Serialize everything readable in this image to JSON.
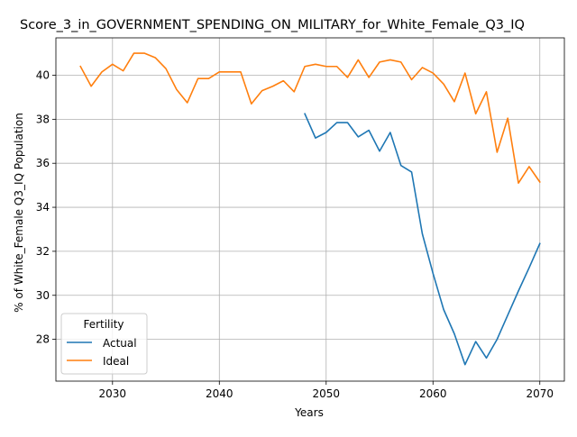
{
  "chart_data": {
    "type": "line",
    "title": "Score_3_in_GOVERNMENT_SPENDING_ON_MILITARY_for_White_Female_Q3_IQ",
    "xlabel": "Years",
    "ylabel": "% of White_Female Q3_IQ Population",
    "xlim": [
      2024.7,
      2072.3
    ],
    "ylim": [
      26.1,
      41.7
    ],
    "x_ticks": [
      2030,
      2040,
      2050,
      2060,
      2070
    ],
    "y_ticks": [
      28,
      30,
      32,
      34,
      36,
      38,
      40
    ],
    "grid": true,
    "legend": {
      "title": "Fertility",
      "placement": "lower-left"
    },
    "series": [
      {
        "name": "Actual",
        "color": "#1f77b4",
        "x": [
          2048,
          2049,
          2050,
          2051,
          2052,
          2053,
          2054,
          2055,
          2056,
          2057,
          2058,
          2059,
          2060,
          2061,
          2062,
          2063,
          2064,
          2065,
          2066,
          2067,
          2068,
          2069,
          2070
        ],
        "values": [
          38.25,
          37.15,
          37.4,
          37.85,
          37.85,
          37.2,
          37.5,
          36.55,
          37.4,
          35.9,
          35.6,
          32.8,
          31.0,
          29.35,
          28.25,
          26.85,
          27.9,
          27.15,
          28.0,
          29.1,
          30.2,
          31.25,
          32.35
        ]
      },
      {
        "name": "Ideal",
        "color": "#ff7f0e",
        "x": [
          2027,
          2028,
          2029,
          2030,
          2031,
          2032,
          2033,
          2034,
          2035,
          2036,
          2037,
          2038,
          2039,
          2040,
          2041,
          2042,
          2043,
          2044,
          2045,
          2046,
          2047,
          2048,
          2049,
          2050,
          2051,
          2052,
          2053,
          2054,
          2055,
          2056,
          2057,
          2058,
          2059,
          2060,
          2061,
          2062,
          2063,
          2064,
          2065,
          2066,
          2067,
          2068,
          2069,
          2070
        ],
        "values": [
          40.4,
          39.5,
          40.15,
          40.5,
          40.2,
          41.0,
          41.0,
          40.8,
          40.3,
          39.35,
          38.75,
          39.85,
          39.85,
          40.15,
          40.15,
          40.15,
          38.7,
          39.3,
          39.5,
          39.75,
          39.25,
          40.4,
          40.5,
          40.4,
          40.4,
          39.9,
          40.7,
          39.9,
          40.6,
          40.7,
          40.6,
          39.8,
          40.35,
          40.1,
          39.6,
          38.8,
          40.1,
          38.25,
          39.25,
          36.5,
          38.05,
          35.1,
          35.85,
          35.15
        ]
      }
    ]
  }
}
